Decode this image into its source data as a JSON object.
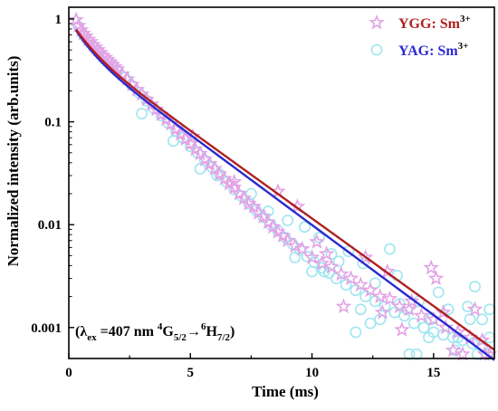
{
  "chart_data": {
    "type": "scatter",
    "xlabel": "Time (ms)",
    "ylabel": "Normalized intensity (arb.units)",
    "xlim": [
      0,
      17.5
    ],
    "ylim": [
      0.0005,
      1.3
    ],
    "xscale": "linear",
    "yscale": "log",
    "xticks": [
      0,
      5,
      10,
      15
    ],
    "yticks": [
      {
        "value": 1,
        "label": "1"
      },
      {
        "value": 0.1,
        "label": "0.1"
      },
      {
        "value": 0.01,
        "label": "0.01"
      },
      {
        "value": 0.001,
        "label": "0.001"
      }
    ],
    "grid": false,
    "legend_position": "top-right",
    "annotation": {
      "prefix": "(λ",
      "subscript": "ex",
      "middle": " =407 nm  ",
      "sup1": "4",
      "g": "G",
      "sub1": "5/2",
      "arrow": "→",
      "sup2": "6",
      "h": "H",
      "sub2": "7/2",
      "suffix": ")"
    },
    "series": [
      {
        "name": "YGG: Sm",
        "name_sup": "3+",
        "marker": "star",
        "marker_color": "#e3a3e6",
        "fit_color": "#b02020",
        "fit_params": {
          "a1": 0.42,
          "t1": 0.7,
          "a2": 0.58,
          "t2": 2.55
        },
        "points": [
          [
            0.3,
            0.98
          ],
          [
            0.4,
            0.86
          ],
          [
            0.5,
            0.78
          ],
          [
            0.6,
            0.72
          ],
          [
            0.7,
            0.68
          ],
          [
            0.8,
            0.63
          ],
          [
            0.9,
            0.6
          ],
          [
            1.0,
            0.56
          ],
          [
            1.1,
            0.53
          ],
          [
            1.2,
            0.5
          ],
          [
            1.3,
            0.47
          ],
          [
            1.4,
            0.44
          ],
          [
            1.5,
            0.42
          ],
          [
            1.6,
            0.4
          ],
          [
            1.7,
            0.38
          ],
          [
            1.8,
            0.36
          ],
          [
            1.9,
            0.34
          ],
          [
            2.0,
            0.325
          ],
          [
            2.2,
            0.29
          ],
          [
            2.4,
            0.26
          ],
          [
            2.6,
            0.23
          ],
          [
            2.8,
            0.205
          ],
          [
            3.0,
            0.185
          ],
          [
            3.2,
            0.165
          ],
          [
            3.4,
            0.148
          ],
          [
            3.6,
            0.132
          ],
          [
            3.8,
            0.118
          ],
          [
            4.0,
            0.106
          ],
          [
            4.2,
            0.095
          ],
          [
            4.4,
            0.085
          ],
          [
            4.6,
            0.076
          ],
          [
            4.8,
            0.068
          ],
          [
            5.0,
            0.061
          ],
          [
            5.2,
            0.054
          ],
          [
            5.4,
            0.049
          ],
          [
            5.6,
            0.043
          ],
          [
            5.8,
            0.039
          ],
          [
            6.0,
            0.035
          ],
          [
            6.2,
            0.031
          ],
          [
            6.4,
            0.028
          ],
          [
            6.6,
            0.025
          ],
          [
            6.8,
            0.023
          ],
          [
            7.0,
            0.02
          ],
          [
            7.2,
            0.018
          ],
          [
            7.4,
            0.016
          ],
          [
            7.6,
            0.015
          ],
          [
            7.8,
            0.013
          ],
          [
            8.0,
            0.012
          ],
          [
            8.2,
            0.0105
          ],
          [
            8.4,
            0.0095
          ],
          [
            8.6,
            0.0085
          ],
          [
            8.8,
            0.0078
          ],
          [
            9.0,
            0.007
          ],
          [
            9.3,
            0.0062
          ],
          [
            9.6,
            0.0058
          ],
          [
            10.0,
            0.0048
          ],
          [
            10.4,
            0.0042
          ],
          [
            10.8,
            0.0039
          ],
          [
            11.2,
            0.0033
          ],
          [
            11.6,
            0.003
          ],
          [
            12.0,
            0.0026
          ],
          [
            12.4,
            0.0023
          ],
          [
            12.8,
            0.002
          ],
          [
            13.2,
            0.0019
          ],
          [
            13.6,
            0.0016
          ],
          [
            14.0,
            0.0015
          ],
          [
            14.5,
            0.0013
          ],
          [
            15.0,
            0.0012
          ],
          [
            15.5,
            0.001
          ],
          [
            16.0,
            0.0009
          ],
          [
            16.5,
            0.0008
          ],
          [
            17.0,
            0.00075
          ],
          [
            5.1,
            0.072
          ],
          [
            6.8,
            0.026
          ],
          [
            8.6,
            0.021
          ],
          [
            9.4,
            0.015
          ],
          [
            10.2,
            0.0068
          ],
          [
            10.6,
            0.0052
          ],
          [
            12.2,
            0.0048
          ],
          [
            13.1,
            0.0035
          ],
          [
            13.7,
            0.00095
          ],
          [
            14.1,
            0.0018
          ],
          [
            14.9,
            0.0038
          ],
          [
            15.1,
            0.003
          ],
          [
            15.4,
            0.0014
          ],
          [
            15.8,
            0.0006
          ],
          [
            16.2,
            0.00055
          ],
          [
            16.7,
            0.0015
          ],
          [
            17.1,
            0.00055
          ],
          [
            17.3,
            0.00055
          ],
          [
            12.9,
            0.0014
          ],
          [
            11.3,
            0.0016
          ]
        ]
      },
      {
        "name": "YAG: Sm",
        "name_sup": "3+",
        "marker": "circle",
        "marker_color": "#9fe6ef",
        "fit_color": "#2a2ad0",
        "fit_params": {
          "a1": 0.44,
          "t1": 0.65,
          "a2": 0.56,
          "t2": 2.48
        },
        "points": [
          [
            0.4,
            0.84
          ],
          [
            0.6,
            0.7
          ],
          [
            0.8,
            0.61
          ],
          [
            1.0,
            0.54
          ],
          [
            1.2,
            0.48
          ],
          [
            1.4,
            0.43
          ],
          [
            1.6,
            0.385
          ],
          [
            1.8,
            0.345
          ],
          [
            2.0,
            0.31
          ],
          [
            2.3,
            0.27
          ],
          [
            2.6,
            0.225
          ],
          [
            2.9,
            0.19
          ],
          [
            3.2,
            0.16
          ],
          [
            3.5,
            0.135
          ],
          [
            3.8,
            0.115
          ],
          [
            4.1,
            0.097
          ],
          [
            4.4,
            0.082
          ],
          [
            4.7,
            0.07
          ],
          [
            5.0,
            0.058
          ],
          [
            5.3,
            0.05
          ],
          [
            5.6,
            0.042
          ],
          [
            5.9,
            0.036
          ],
          [
            6.2,
            0.031
          ],
          [
            6.5,
            0.026
          ],
          [
            6.8,
            0.022
          ],
          [
            7.1,
            0.019
          ],
          [
            7.4,
            0.016
          ],
          [
            7.7,
            0.0138
          ],
          [
            8.0,
            0.0118
          ],
          [
            8.3,
            0.01
          ],
          [
            8.6,
            0.0087
          ],
          [
            8.9,
            0.0075
          ],
          [
            9.2,
            0.0065
          ],
          [
            9.5,
            0.0057
          ],
          [
            9.8,
            0.0049
          ],
          [
            10.1,
            0.0043
          ],
          [
            10.4,
            0.0038
          ],
          [
            10.7,
            0.0034
          ],
          [
            11.0,
            0.003
          ],
          [
            11.4,
            0.0026
          ],
          [
            11.8,
            0.0023
          ],
          [
            12.2,
            0.002
          ],
          [
            12.6,
            0.0018
          ],
          [
            13.0,
            0.0016
          ],
          [
            13.4,
            0.0014
          ],
          [
            13.8,
            0.0013
          ],
          [
            14.2,
            0.0011
          ],
          [
            14.6,
            0.001
          ],
          [
            15.0,
            0.0009
          ],
          [
            15.4,
            0.00085
          ],
          [
            15.8,
            0.0008
          ],
          [
            16.2,
            0.00075
          ],
          [
            16.6,
            0.0007
          ],
          [
            17.0,
            0.00065
          ],
          [
            3.0,
            0.12
          ],
          [
            4.3,
            0.065
          ],
          [
            5.4,
            0.035
          ],
          [
            6.1,
            0.03
          ],
          [
            9.0,
            0.011
          ],
          [
            9.7,
            0.0095
          ],
          [
            10.3,
            0.0075
          ],
          [
            10.5,
            0.0035
          ],
          [
            10.8,
            0.0052
          ],
          [
            11.5,
            0.0055
          ],
          [
            12.1,
            0.0042
          ],
          [
            12.4,
            0.0011
          ],
          [
            12.8,
            0.0012
          ],
          [
            13.2,
            0.0058
          ],
          [
            13.9,
            0.0015
          ],
          [
            14.4,
            0.0018
          ],
          [
            14.8,
            0.0008
          ],
          [
            15.2,
            0.0022
          ],
          [
            15.6,
            0.0015
          ],
          [
            16.0,
            0.0008
          ],
          [
            16.4,
            0.0016
          ],
          [
            16.7,
            0.0025
          ],
          [
            17.0,
            0.0012
          ],
          [
            17.3,
            0.0015
          ],
          [
            17.3,
            0.0008
          ],
          [
            14.0,
            0.00055
          ],
          [
            14.3,
            0.00055
          ],
          [
            16.8,
            0.00055
          ],
          [
            17.2,
            0.00055
          ],
          [
            11.8,
            0.0009
          ],
          [
            13.5,
            0.0032
          ],
          [
            12.6,
            0.0027
          ],
          [
            15.9,
            0.0006
          ],
          [
            16.5,
            0.0012
          ],
          [
            9.3,
            0.0048
          ],
          [
            8.2,
            0.0135
          ],
          [
            7.5,
            0.02
          ],
          [
            10.0,
            0.0035
          ],
          [
            11.1,
            0.0044
          ],
          [
            13.6,
            0.0017
          ],
          [
            12.0,
            0.0015
          ],
          [
            14.9,
            0.0012
          ]
        ]
      }
    ]
  }
}
